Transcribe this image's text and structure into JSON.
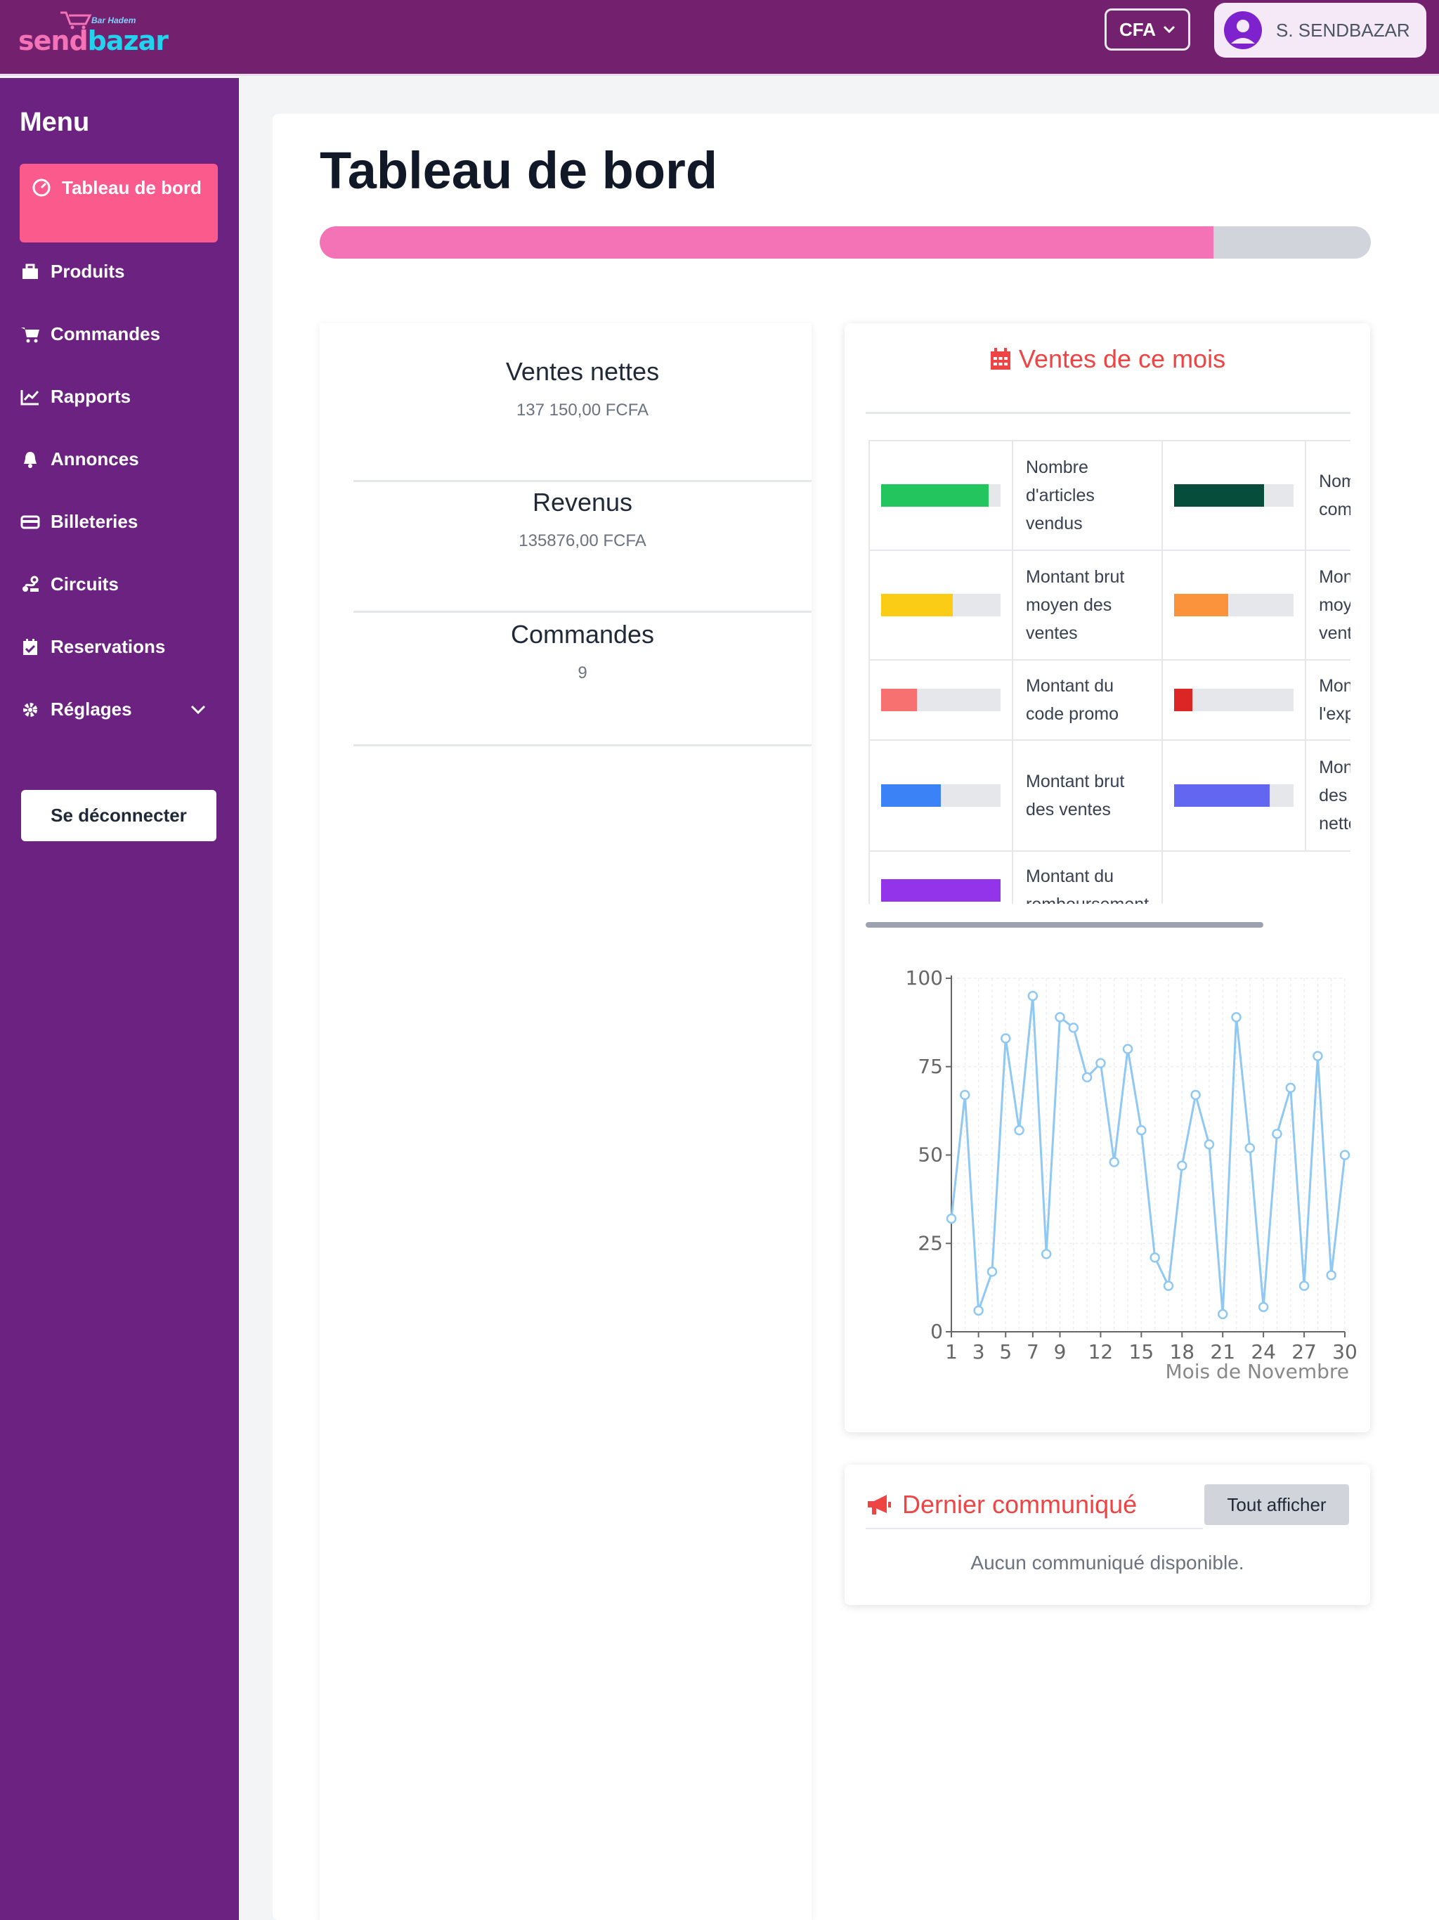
{
  "app": {
    "logo_part1": "send",
    "logo_part2": "bazar",
    "logo_tagline": "Bar Hadem",
    "currency": "CFA",
    "user_name": "S. SENDBAZAR"
  },
  "sidebar": {
    "title": "Menu",
    "items": [
      {
        "label": "Tableau de bord",
        "icon": "dashboard-icon",
        "active": true
      },
      {
        "label": "Produits",
        "icon": "briefcase-icon"
      },
      {
        "label": "Commandes",
        "icon": "cart-icon"
      },
      {
        "label": "Rapports",
        "icon": "chart-line-icon"
      },
      {
        "label": "Annonces",
        "icon": "bell-icon"
      },
      {
        "label": "Billeteries",
        "icon": "ticket-icon"
      },
      {
        "label": "Circuits",
        "icon": "route-icon"
      },
      {
        "label": "Reservations",
        "icon": "calendar-check-icon"
      },
      {
        "label": "Réglages",
        "icon": "gear-icon"
      }
    ],
    "logout_label": "Se déconnecter"
  },
  "main": {
    "title": "Tableau de bord",
    "progress_fraction": 0.85,
    "stats": [
      {
        "label": "Ventes nettes",
        "value": "137 150,00 FCFA"
      },
      {
        "label": "Revenus",
        "value": "135876,00 FCFA"
      },
      {
        "label": "Commandes",
        "value": "9"
      }
    ]
  },
  "sales": {
    "title": "Ventes de ce mois",
    "legend_col1": [
      {
        "label": "Nombre d'articles vendus",
        "color": "#22c55e",
        "fill": 0.9
      },
      {
        "label": "Montant brut moyen des ventes",
        "color": "#facc15",
        "fill": 0.6
      },
      {
        "label": "Montant du code promo",
        "color": "#f87171",
        "fill": 0.3
      },
      {
        "label": "Montant brut des ventes",
        "color": "#3b82f6",
        "fill": 0.5
      },
      {
        "label": "Montant du remboursement",
        "color": "#9333ea",
        "fill": 1.0
      }
    ],
    "legend_col2": [
      {
        "label": "Nombre de commandes",
        "color": "#064e3b",
        "fill": 0.75
      },
      {
        "label": "Montant net moyen des ventes",
        "color": "#fb923c",
        "fill": 0.45
      },
      {
        "label": "Montant de l'expédition",
        "color": "#dc2626",
        "fill": 0.15
      },
      {
        "label": "Montant des ventes nettes",
        "color": "#6366f1",
        "fill": 0.8
      }
    ]
  },
  "chart_data": {
    "type": "line",
    "x": [
      1,
      2,
      3,
      4,
      5,
      6,
      7,
      8,
      9,
      10,
      11,
      12,
      13,
      14,
      15,
      16,
      17,
      18,
      19,
      20,
      21,
      22,
      23,
      24,
      25,
      26,
      27,
      28,
      29,
      30
    ],
    "series": [
      {
        "values": [
          32,
          67,
          6,
          17,
          83,
          57,
          95,
          22,
          89,
          86,
          72,
          76,
          48,
          80,
          57,
          21,
          13,
          47,
          67,
          53,
          5,
          89,
          52,
          7,
          56,
          69,
          13,
          78,
          16,
          50
        ]
      }
    ],
    "xticks": [
      1,
      3,
      5,
      7,
      9,
      12,
      15,
      18,
      21,
      24,
      27,
      30
    ],
    "yticks": [
      0,
      25,
      50,
      75,
      100
    ],
    "ylim": [
      0,
      100
    ],
    "xlabel": "Mois de Novembre",
    "ylabel": "",
    "grid": true,
    "color": "#90c8f4"
  },
  "communique": {
    "title": "Dernier communiqué",
    "button_label": "Tout afficher",
    "empty_text": "Aucun communiqué disponible."
  }
}
